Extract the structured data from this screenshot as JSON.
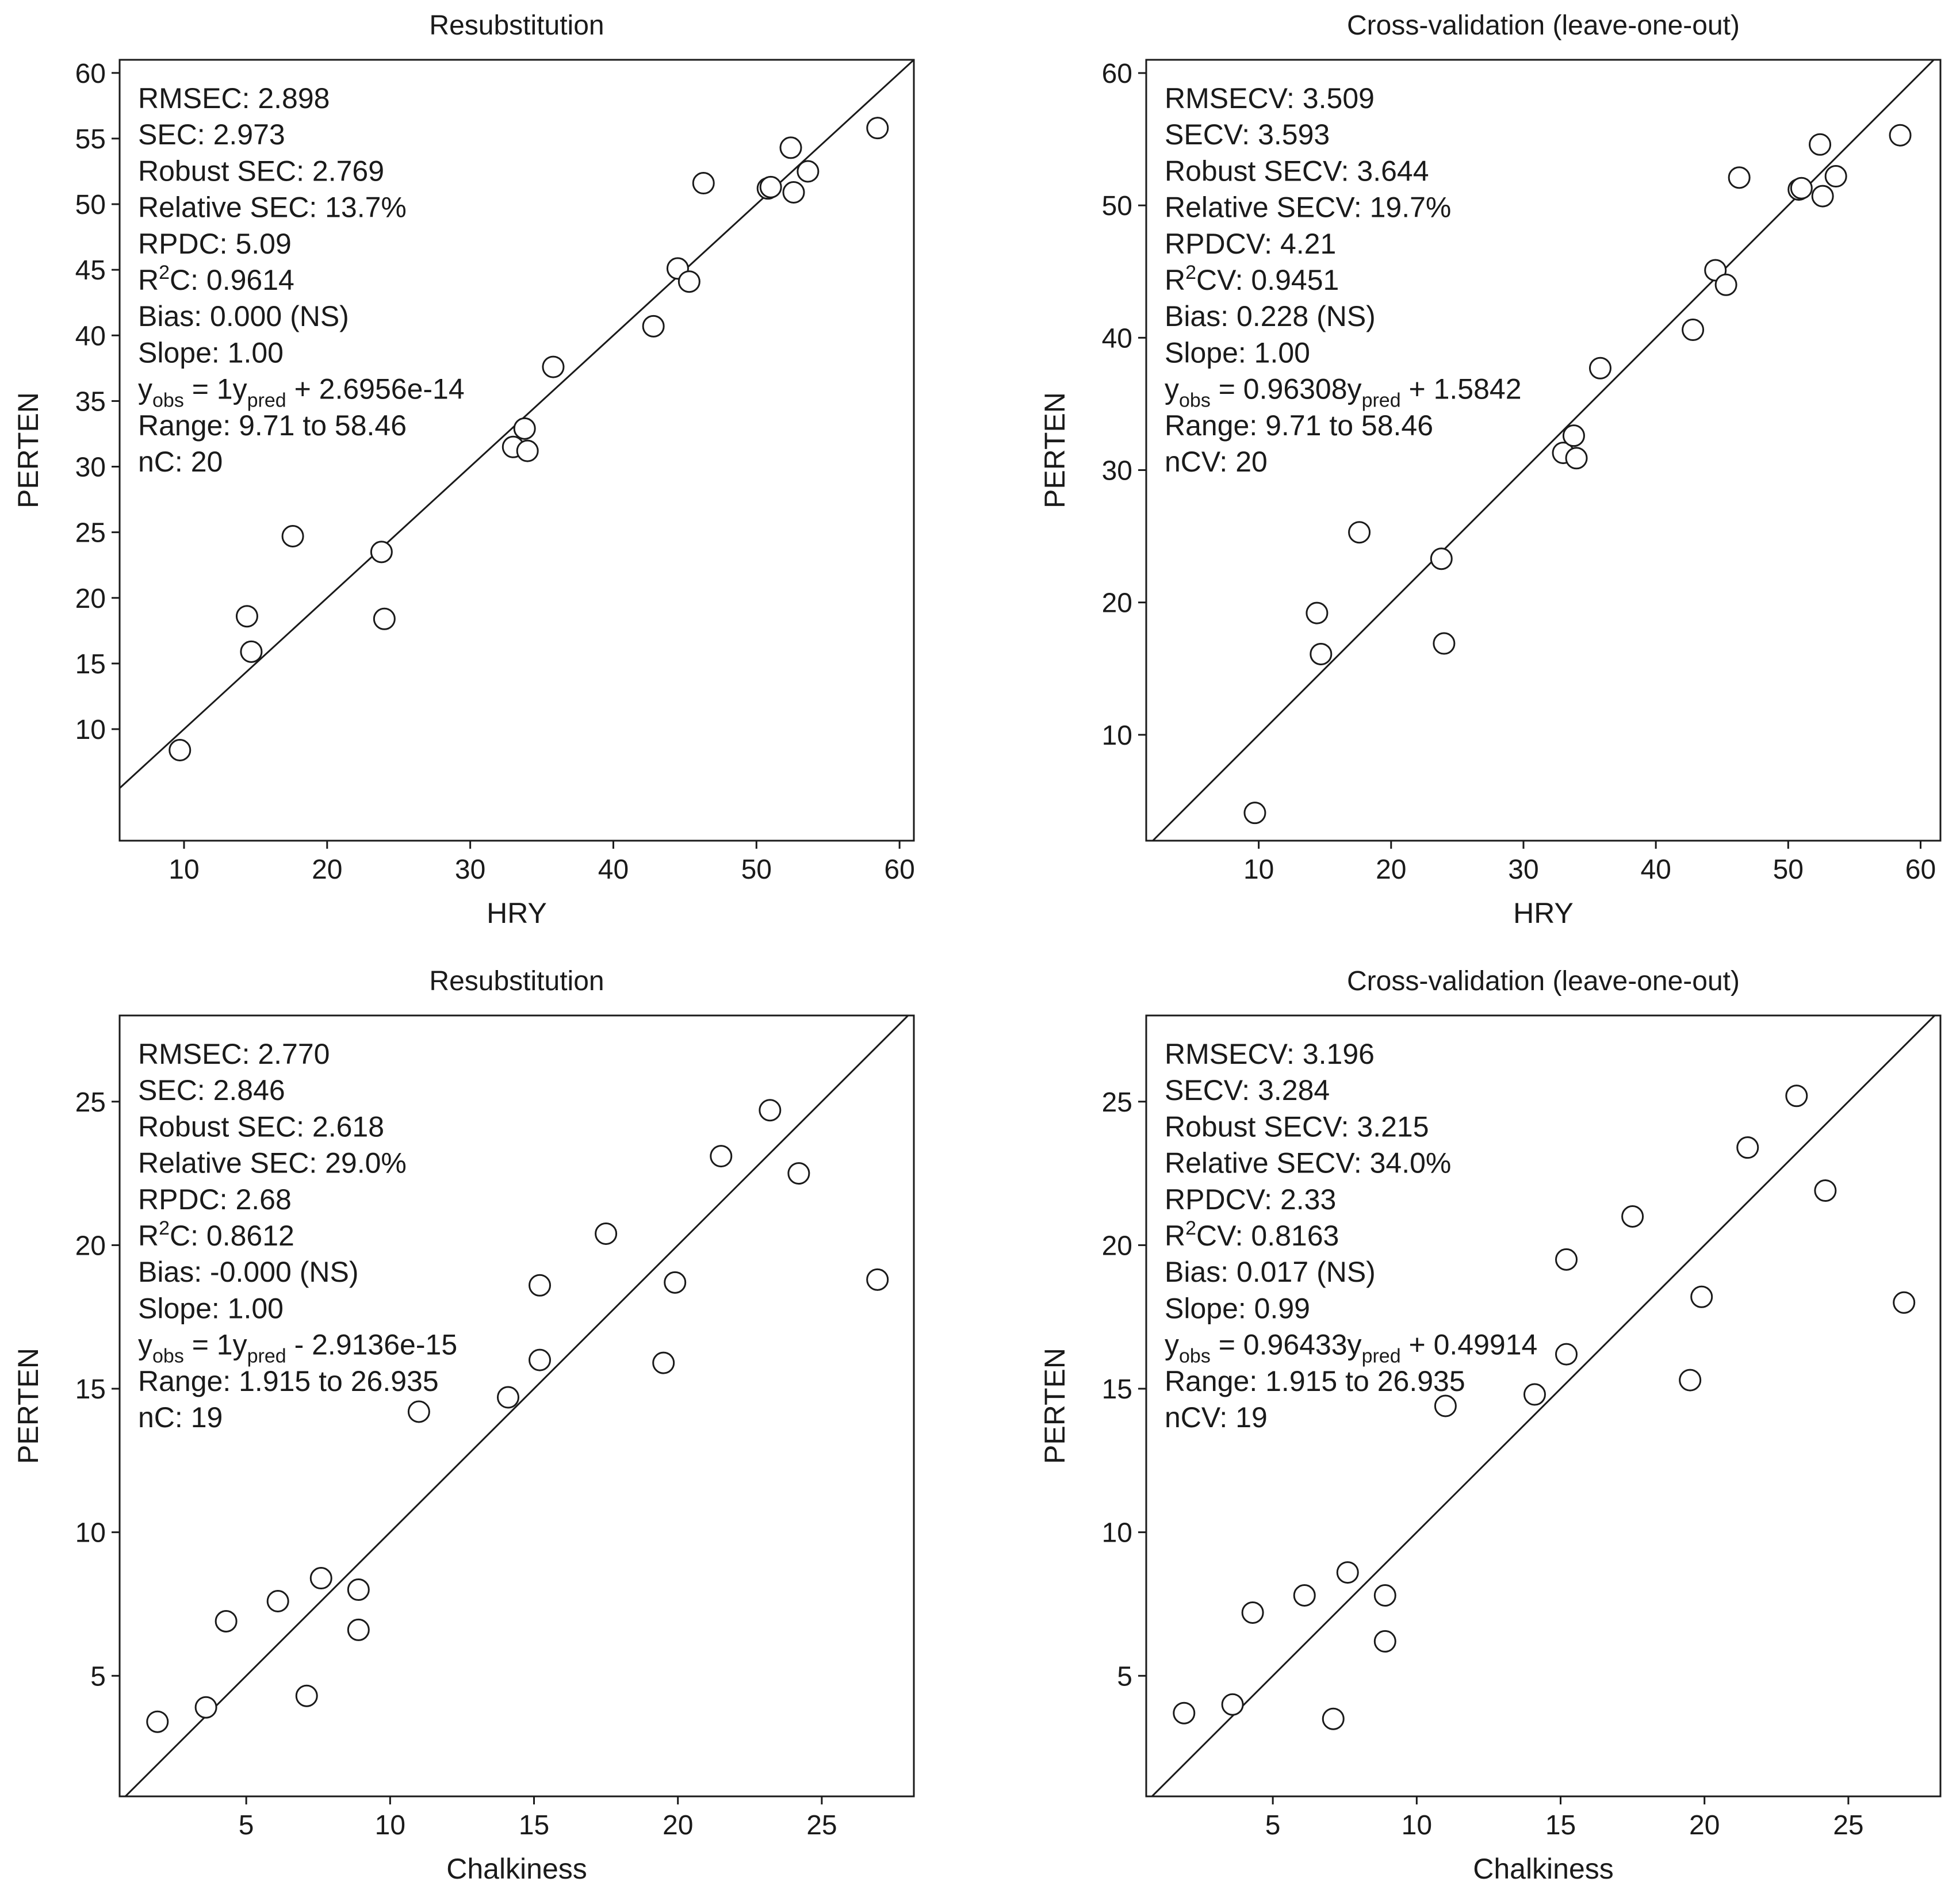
{
  "chart_data": [
    {
      "type": "scatter",
      "title": "Resubstitution",
      "xlabel": "HRY",
      "ylabel": "PERTEN",
      "xlim": [
        5.5,
        61
      ],
      "ylim": [
        1.5,
        61
      ],
      "xticks": [
        10,
        20,
        30,
        40,
        50,
        60
      ],
      "yticks": [
        10,
        15,
        20,
        25,
        30,
        35,
        40,
        45,
        50,
        55,
        60
      ],
      "identity_line": true,
      "stats": [
        {
          "text": "RMSEC: 2.898"
        },
        {
          "text": "SEC: 2.973"
        },
        {
          "text": "Robust SEC: 2.769"
        },
        {
          "text": "Relative SEC: 13.7%"
        },
        {
          "text": "RPDC: 5.09"
        },
        {
          "pre": "R",
          "sup": "2",
          "post": "C: 0.9614"
        },
        {
          "text": "Bias: 0.000 (NS)"
        },
        {
          "text": "Slope: 1.00"
        },
        {
          "pre": "y",
          "sub1": "obs",
          "mid": " = 1y",
          "sub2": "pred",
          "post": " + 2.6956e-14"
        },
        {
          "text": "Range: 9.71 to 58.46"
        },
        {
          "text": "nC: 20"
        }
      ],
      "points": [
        [
          9.71,
          8.4
        ],
        [
          14.4,
          18.6
        ],
        [
          14.7,
          15.9
        ],
        [
          17.6,
          24.7
        ],
        [
          23.8,
          23.5
        ],
        [
          24.0,
          18.4
        ],
        [
          33.0,
          31.5
        ],
        [
          33.8,
          32.9
        ],
        [
          34.0,
          31.2
        ],
        [
          35.8,
          37.6
        ],
        [
          42.8,
          40.7
        ],
        [
          44.5,
          45.1
        ],
        [
          45.3,
          44.1
        ],
        [
          46.3,
          51.6
        ],
        [
          50.8,
          51.2
        ],
        [
          51.0,
          51.3
        ],
        [
          52.4,
          54.3
        ],
        [
          52.6,
          50.9
        ],
        [
          53.6,
          52.5
        ],
        [
          58.46,
          55.8
        ]
      ]
    },
    {
      "type": "scatter",
      "title": "Cross-validation (leave-one-out)",
      "xlabel": "HRY",
      "ylabel": "PERTEN",
      "xlim": [
        1.5,
        61.5
      ],
      "ylim": [
        2,
        61
      ],
      "xticks": [
        10,
        20,
        30,
        40,
        50,
        60
      ],
      "yticks": [
        10,
        20,
        30,
        40,
        50,
        60
      ],
      "identity_line": true,
      "stats": [
        {
          "text": "RMSECV: 3.509"
        },
        {
          "text": "SECV: 3.593"
        },
        {
          "text": "Robust SECV: 3.644"
        },
        {
          "text": "Relative SECV: 19.7%"
        },
        {
          "text": "RPDCV: 4.21"
        },
        {
          "pre": "R",
          "sup": "2",
          "post": "CV: 0.9451"
        },
        {
          "text": "Bias: 0.228 (NS)"
        },
        {
          "text": "Slope: 1.00"
        },
        {
          "pre": "y",
          "sub1": "obs",
          "mid": " = 0.96308y",
          "sub2": "pred",
          "post": " + 1.5842"
        },
        {
          "text": "Range: 9.71 to 58.46"
        },
        {
          "text": "nCV: 20"
        }
      ],
      "points": [
        [
          9.71,
          4.1
        ],
        [
          14.4,
          19.2
        ],
        [
          14.7,
          16.1
        ],
        [
          17.6,
          25.3
        ],
        [
          23.8,
          23.3
        ],
        [
          24.0,
          16.9
        ],
        [
          33.0,
          31.3
        ],
        [
          33.8,
          32.6
        ],
        [
          34.0,
          30.9
        ],
        [
          35.8,
          37.7
        ],
        [
          42.8,
          40.6
        ],
        [
          44.5,
          45.1
        ],
        [
          45.3,
          44.0
        ],
        [
          46.3,
          52.1
        ],
        [
          50.8,
          51.2
        ],
        [
          51.0,
          51.3
        ],
        [
          52.4,
          54.6
        ],
        [
          52.6,
          50.7
        ],
        [
          53.6,
          52.2
        ],
        [
          58.46,
          55.3
        ]
      ]
    },
    {
      "type": "scatter",
      "title": "Resubstitution",
      "xlabel": "Chalkiness",
      "ylabel": "PERTEN",
      "xlim": [
        0.6,
        28.2
      ],
      "ylim": [
        0.8,
        28
      ],
      "xticks": [
        5,
        10,
        15,
        20,
        25
      ],
      "yticks": [
        5,
        10,
        15,
        20,
        25
      ],
      "identity_line": true,
      "stats": [
        {
          "text": "RMSEC: 2.770"
        },
        {
          "text": "SEC: 2.846"
        },
        {
          "text": "Robust SEC: 2.618"
        },
        {
          "text": "Relative SEC: 29.0%"
        },
        {
          "text": "RPDC: 2.68"
        },
        {
          "pre": "R",
          "sup": "2",
          "post": "C: 0.8612"
        },
        {
          "text": "Bias: -0.000 (NS)"
        },
        {
          "text": "Slope: 1.00"
        },
        {
          "pre": "y",
          "sub1": "obs",
          "mid": " = 1y",
          "sub2": "pred",
          "post": " - 2.9136e-15"
        },
        {
          "text": "Range: 1.915 to 26.935"
        },
        {
          "text": "nC: 19"
        }
      ],
      "points": [
        [
          1.915,
          3.4
        ],
        [
          3.6,
          3.9
        ],
        [
          4.3,
          6.9
        ],
        [
          6.1,
          7.6
        ],
        [
          7.1,
          4.3
        ],
        [
          7.6,
          8.4
        ],
        [
          8.9,
          6.6
        ],
        [
          8.9,
          8.0
        ],
        [
          11.0,
          14.2
        ],
        [
          14.1,
          14.7
        ],
        [
          15.2,
          16.0
        ],
        [
          15.2,
          18.6
        ],
        [
          17.5,
          20.4
        ],
        [
          19.5,
          15.9
        ],
        [
          19.9,
          18.7
        ],
        [
          21.5,
          23.1
        ],
        [
          23.2,
          24.7
        ],
        [
          24.2,
          22.5
        ],
        [
          26.935,
          18.8
        ]
      ]
    },
    {
      "type": "scatter",
      "title": "Cross-validation (leave-one-out)",
      "xlabel": "Chalkiness",
      "ylabel": "PERTEN",
      "xlim": [
        0.6,
        28.2
      ],
      "ylim": [
        0.8,
        28
      ],
      "xticks": [
        5,
        10,
        15,
        20,
        25
      ],
      "yticks": [
        5,
        10,
        15,
        20,
        25
      ],
      "identity_line": true,
      "stats": [
        {
          "text": "RMSECV: 3.196"
        },
        {
          "text": "SECV: 3.284"
        },
        {
          "text": "Robust SECV: 3.215"
        },
        {
          "text": "Relative SECV: 34.0%"
        },
        {
          "text": "RPDCV: 2.33"
        },
        {
          "pre": "R",
          "sup": "2",
          "post": "CV: 0.8163"
        },
        {
          "text": "Bias: 0.017 (NS)"
        },
        {
          "text": "Slope: 0.99"
        },
        {
          "pre": "y",
          "sub1": "obs",
          "mid": " = 0.96433y",
          "sub2": "pred",
          "post": " + 0.49914"
        },
        {
          "text": "Range: 1.915 to 26.935"
        },
        {
          "text": "nCV: 19"
        }
      ],
      "points": [
        [
          1.915,
          3.7
        ],
        [
          3.6,
          4.0
        ],
        [
          4.3,
          7.2
        ],
        [
          6.1,
          7.8
        ],
        [
          7.1,
          3.5
        ],
        [
          7.6,
          8.6
        ],
        [
          8.9,
          6.2
        ],
        [
          8.9,
          7.8
        ],
        [
          11.0,
          14.4
        ],
        [
          14.1,
          14.8
        ],
        [
          15.2,
          16.2
        ],
        [
          15.2,
          19.5
        ],
        [
          17.5,
          21.0
        ],
        [
          19.5,
          15.3
        ],
        [
          19.9,
          18.2
        ],
        [
          21.5,
          23.4
        ],
        [
          23.2,
          25.2
        ],
        [
          24.2,
          21.9
        ],
        [
          26.935,
          18.0
        ]
      ]
    }
  ]
}
